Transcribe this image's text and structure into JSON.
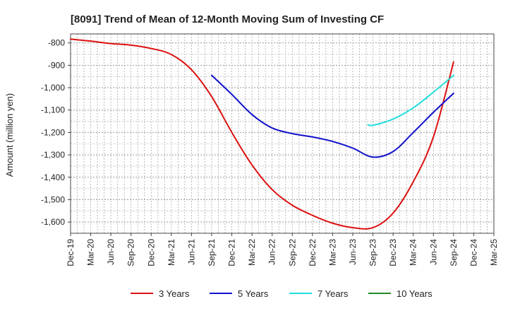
{
  "chart_data": {
    "type": "line",
    "title": "[8091]  Trend of Mean of 12-Month Moving Sum of Investing CF",
    "ylabel": "Amount (million yen)",
    "xlabel": "",
    "ylim": [
      -1650,
      -760
    ],
    "yticks": [
      -800,
      -900,
      -1000,
      -1100,
      -1200,
      -1300,
      -1400,
      -1500,
      -1600
    ],
    "ytick_labels": [
      "-800",
      "-900",
      "-1,000",
      "-1,100",
      "-1,200",
      "-1,300",
      "-1,400",
      "-1,500",
      "-1,600"
    ],
    "x_tick_labels": [
      "Dec-19",
      "Mar-20",
      "Jun-20",
      "Sep-20",
      "Dec-20",
      "Mar-21",
      "Jun-21",
      "Sep-21",
      "Dec-21",
      "Mar-22",
      "Jun-22",
      "Sep-22",
      "Dec-22",
      "Mar-23",
      "Jun-23",
      "Sep-23",
      "Dec-23",
      "Mar-24",
      "Jun-24",
      "Sep-24",
      "Dec-24",
      "Mar-25"
    ],
    "grid": true,
    "series": [
      {
        "name": "3 Years",
        "color": "#dd1111",
        "points": [
          [
            0,
            -783
          ],
          [
            1,
            -792
          ],
          [
            2,
            -803
          ],
          [
            3,
            -810
          ],
          [
            4,
            -825
          ],
          [
            5,
            -852
          ],
          [
            6,
            -920
          ],
          [
            7,
            -1040
          ],
          [
            8,
            -1200
          ],
          [
            9,
            -1345
          ],
          [
            10,
            -1455
          ],
          [
            11,
            -1525
          ],
          [
            12,
            -1570
          ],
          [
            13,
            -1605
          ],
          [
            14,
            -1625
          ],
          [
            15,
            -1625
          ],
          [
            16,
            -1560
          ],
          [
            17,
            -1420
          ],
          [
            18,
            -1220
          ],
          [
            19,
            -885
          ]
        ]
      },
      {
        "name": "5 Years",
        "color": "#1111cc",
        "points": [
          [
            7,
            -945
          ],
          [
            8,
            -1030
          ],
          [
            9,
            -1120
          ],
          [
            10,
            -1180
          ],
          [
            11,
            -1205
          ],
          [
            12,
            -1220
          ],
          [
            13,
            -1240
          ],
          [
            14,
            -1270
          ],
          [
            15,
            -1310
          ],
          [
            16,
            -1285
          ],
          [
            17,
            -1200
          ],
          [
            18,
            -1110
          ],
          [
            19,
            -1025
          ]
        ]
      },
      {
        "name": "7 Years",
        "color": "#22dddd",
        "points": [
          [
            14.75,
            -1165
          ],
          [
            15,
            -1168
          ],
          [
            16,
            -1140
          ],
          [
            17,
            -1090
          ],
          [
            18,
            -1020
          ],
          [
            19,
            -945
          ]
        ]
      },
      {
        "name": "10 Years",
        "color": "#228822",
        "points": []
      }
    ]
  }
}
